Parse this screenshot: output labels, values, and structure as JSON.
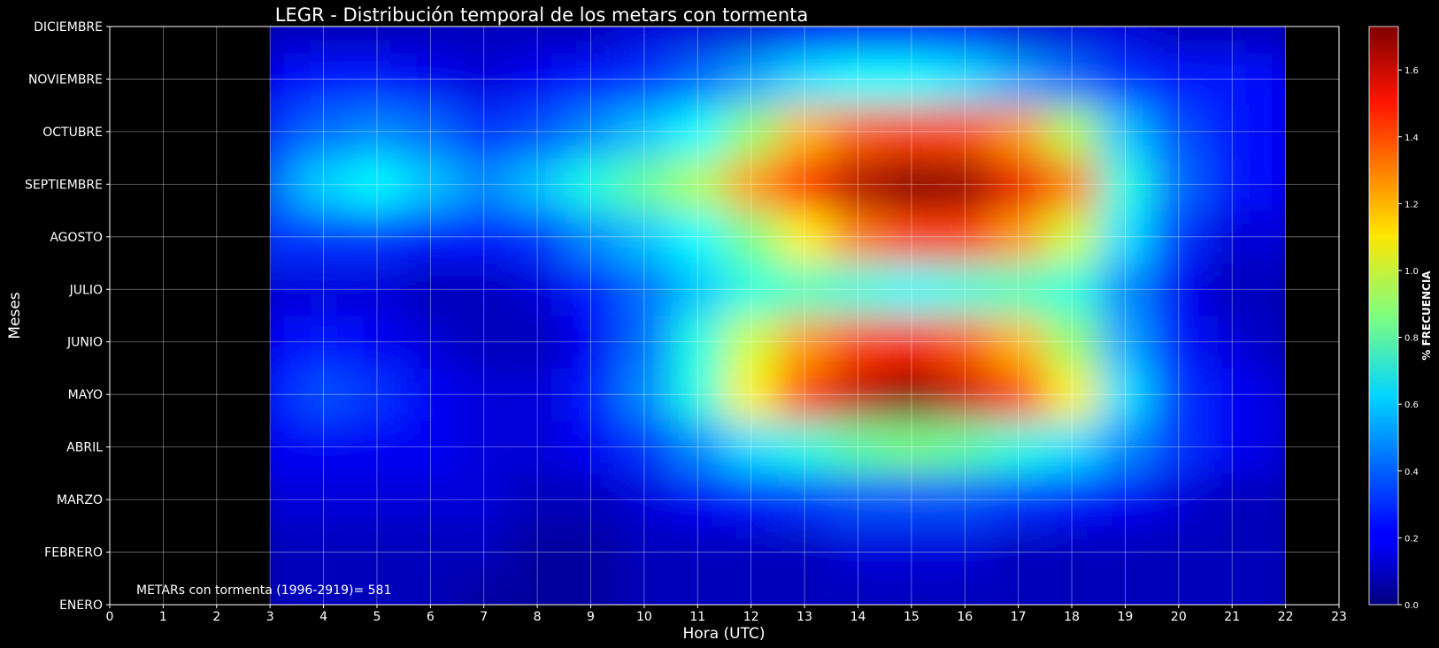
{
  "chart_data": {
    "type": "heatmap",
    "title": "LEGR - Distribución temporal de los metars con tormenta",
    "xlabel": "Hora (UTC)",
    "ylabel": "Meses",
    "x_ticks": [
      "0",
      "1",
      "2",
      "3",
      "4",
      "5",
      "6",
      "7",
      "8",
      "9",
      "10",
      "11",
      "12",
      "13",
      "14",
      "15",
      "16",
      "17",
      "18",
      "19",
      "20",
      "21",
      "22",
      "23"
    ],
    "xlim": [
      0,
      23
    ],
    "data_x_range": [
      3,
      22
    ],
    "y_ticks": [
      "ENERO",
      "FEBRERO",
      "MARZO",
      "ABRIL",
      "MAYO",
      "JUNIO",
      "JULIO",
      "AGOSTO",
      "SEPTIEMBRE",
      "OCTUBRE",
      "NOVIEMBRE",
      "DICIEMBRE"
    ],
    "ylim": [
      0,
      11
    ],
    "grid": true,
    "colormap": "jet",
    "colorbar": {
      "label": "% FRECUENCIA",
      "range": [
        0,
        1.73
      ],
      "ticks": [
        "0.0",
        "0.2",
        "0.4",
        "0.6",
        "0.8",
        "1.0",
        "1.2",
        "1.4",
        "1.6"
      ]
    },
    "annotation": "METARs con tormenta (1996-2919)= 581",
    "hours": [
      3,
      4,
      5,
      6,
      7,
      8,
      9,
      10,
      11,
      12,
      13,
      14,
      15,
      16,
      17,
      18,
      19,
      20,
      21,
      22
    ],
    "months": [
      "ENERO",
      "FEBRERO",
      "MARZO",
      "ABRIL",
      "MAYO",
      "JUNIO",
      "JULIO",
      "AGOSTO",
      "SEPTIEMBRE",
      "OCTUBRE",
      "NOVIEMBRE",
      "DICIEMBRE"
    ],
    "values": [
      [
        0.1,
        0.1,
        0.1,
        0.1,
        0.05,
        0.05,
        0.05,
        0.1,
        0.1,
        0.1,
        0.1,
        0.1,
        0.1,
        0.1,
        0.1,
        0.1,
        0.1,
        0.1,
        0.1,
        0.1
      ],
      [
        0.1,
        0.1,
        0.1,
        0.1,
        0.1,
        0.05,
        0.05,
        0.1,
        0.1,
        0.1,
        0.1,
        0.15,
        0.15,
        0.15,
        0.1,
        0.1,
        0.1,
        0.1,
        0.1,
        0.1
      ],
      [
        0.15,
        0.15,
        0.15,
        0.15,
        0.15,
        0.1,
        0.1,
        0.15,
        0.2,
        0.25,
        0.3,
        0.35,
        0.35,
        0.35,
        0.3,
        0.25,
        0.2,
        0.15,
        0.1,
        0.1
      ],
      [
        0.2,
        0.2,
        0.2,
        0.2,
        0.15,
        0.15,
        0.2,
        0.3,
        0.45,
        0.6,
        0.7,
        0.8,
        0.85,
        0.8,
        0.7,
        0.6,
        0.45,
        0.3,
        0.2,
        0.15
      ],
      [
        0.25,
        0.35,
        0.3,
        0.2,
        0.15,
        0.15,
        0.25,
        0.45,
        0.7,
        1.1,
        1.4,
        1.62,
        1.72,
        1.6,
        1.4,
        1.1,
        0.6,
        0.3,
        0.2,
        0.15
      ],
      [
        0.2,
        0.25,
        0.2,
        0.15,
        0.1,
        0.1,
        0.2,
        0.4,
        0.7,
        1.0,
        1.25,
        1.4,
        1.45,
        1.35,
        1.2,
        0.9,
        0.5,
        0.25,
        0.15,
        0.1
      ],
      [
        0.15,
        0.15,
        0.15,
        0.1,
        0.1,
        0.15,
        0.25,
        0.4,
        0.55,
        0.7,
        0.75,
        0.7,
        0.65,
        0.7,
        0.75,
        0.7,
        0.45,
        0.2,
        0.1,
        0.1
      ],
      [
        0.3,
        0.3,
        0.3,
        0.25,
        0.25,
        0.3,
        0.45,
        0.55,
        0.65,
        0.85,
        1.1,
        1.3,
        1.4,
        1.4,
        1.25,
        1.0,
        0.6,
        0.3,
        0.15,
        0.15
      ],
      [
        0.4,
        0.58,
        0.65,
        0.55,
        0.45,
        0.55,
        0.7,
        0.82,
        0.95,
        1.25,
        1.5,
        1.65,
        1.73,
        1.7,
        1.55,
        1.3,
        0.7,
        0.4,
        0.25,
        0.2
      ],
      [
        0.3,
        0.4,
        0.45,
        0.4,
        0.3,
        0.35,
        0.45,
        0.55,
        0.65,
        0.9,
        1.2,
        1.35,
        1.4,
        1.38,
        1.25,
        0.95,
        0.55,
        0.35,
        0.25,
        0.2
      ],
      [
        0.2,
        0.25,
        0.25,
        0.2,
        0.15,
        0.2,
        0.25,
        0.3,
        0.4,
        0.5,
        0.6,
        0.65,
        0.65,
        0.6,
        0.5,
        0.4,
        0.3,
        0.25,
        0.25,
        0.2
      ],
      [
        0.1,
        0.1,
        0.1,
        0.1,
        0.1,
        0.1,
        0.1,
        0.15,
        0.15,
        0.15,
        0.2,
        0.2,
        0.2,
        0.2,
        0.15,
        0.15,
        0.15,
        0.1,
        0.1,
        0.1
      ]
    ]
  }
}
